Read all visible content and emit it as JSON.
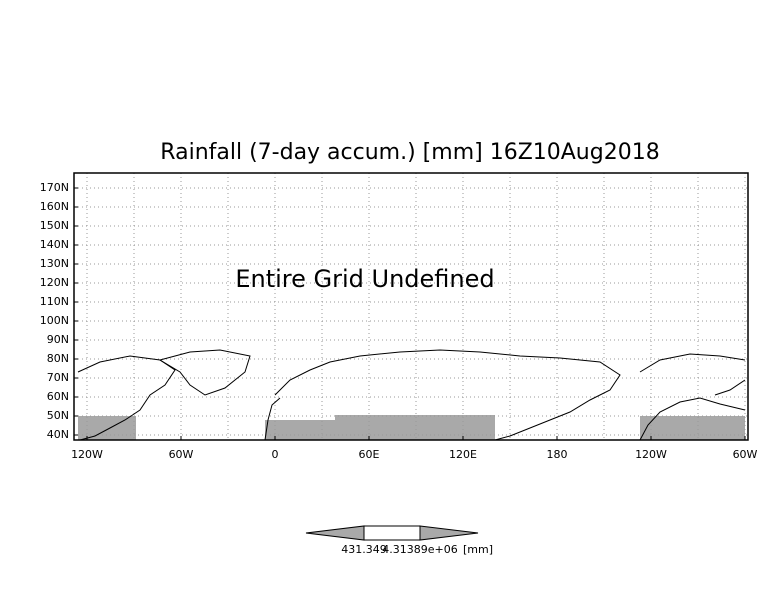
{
  "map": {
    "title": "Rainfall (7-day accum.) [mm] 16Z10Aug2018",
    "annotation": "Entire Grid Undefined",
    "lat_labels": [
      "170N",
      "160N",
      "150N",
      "140N",
      "130N",
      "120N",
      "110N",
      "100N",
      "90N",
      "80N",
      "70N",
      "60N",
      "50N",
      "40N"
    ],
    "lon_labels": [
      "120W",
      "60W",
      "0",
      "60E",
      "120E",
      "180",
      "120W",
      "60W"
    ],
    "colorbar": {
      "low_label": "431.349",
      "high_label": "4.31389e+06",
      "unit": "[mm]"
    }
  }
}
